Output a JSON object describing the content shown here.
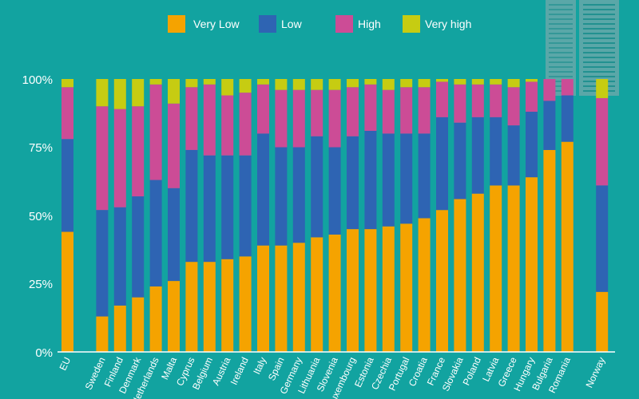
{
  "colors": {
    "background": "#12a3a0",
    "very_low": "#f5a300",
    "low": "#2e64b3",
    "high": "#cc4c96",
    "very_high": "#c6cc12",
    "axis": "#ffffff",
    "decoration": "#5aa7a8"
  },
  "legend": {
    "very_low": "Very Low",
    "low": "Low",
    "high": "High",
    "very_high": "Very high"
  },
  "chart_data": {
    "type": "bar",
    "stacked": true,
    "ylim": [
      0,
      100
    ],
    "yticks": [
      "0%",
      "25%",
      "50%",
      "75%",
      "100%"
    ],
    "grid": false,
    "legend_position": "top",
    "groups": [
      [
        "EU"
      ],
      [
        "Sweden",
        "Finland",
        "Denmark",
        "Netherlands",
        "Malta",
        "Cyprus",
        "Belgium",
        "Austria",
        "Ireland",
        "Italy",
        "Spain",
        "Germany",
        "Lithuania",
        "Slovenia",
        "Luxembourg",
        "Estonia",
        "Czechia",
        "Portugal",
        "Croatia",
        "France",
        "Slovakia",
        "Poland",
        "Latvia",
        "Greece",
        "Hungary",
        "Bulgaria",
        "Romania"
      ],
      [
        "Norway"
      ]
    ],
    "categories": [
      "EU",
      "Sweden",
      "Finland",
      "Denmark",
      "Netherlands",
      "Malta",
      "Cyprus",
      "Belgium",
      "Austria",
      "Ireland",
      "Italy",
      "Spain",
      "Germany",
      "Lithuania",
      "Slovenia",
      "Luxembourg",
      "Estonia",
      "Czechia",
      "Portugal",
      "Croatia",
      "France",
      "Slovakia",
      "Poland",
      "Latvia",
      "Greece",
      "Hungary",
      "Bulgaria",
      "Romania",
      "Norway"
    ],
    "series": [
      {
        "name": "Very Low",
        "color": "#f5a300",
        "values": [
          44,
          13,
          17,
          20,
          24,
          26,
          33,
          33,
          34,
          35,
          39,
          39,
          40,
          42,
          43,
          45,
          45,
          46,
          47,
          49,
          52,
          56,
          58,
          61,
          61,
          64,
          74,
          77,
          22
        ]
      },
      {
        "name": "Low",
        "color": "#2e64b3",
        "values": [
          34,
          39,
          36,
          37,
          39,
          34,
          41,
          39,
          38,
          37,
          41,
          36,
          35,
          37,
          32,
          34,
          36,
          34,
          33,
          31,
          34,
          28,
          28,
          25,
          22,
          24,
          18,
          17,
          39
        ]
      },
      {
        "name": "High",
        "color": "#cc4c96",
        "values": [
          19,
          38,
          36,
          33,
          35,
          31,
          23,
          26,
          22,
          23,
          18,
          21,
          21,
          17,
          21,
          18,
          17,
          16,
          17,
          17,
          13,
          14,
          12,
          12,
          14,
          11,
          8,
          6,
          32
        ]
      },
      {
        "name": "Very high",
        "color": "#c6cc12",
        "values": [
          3,
          10,
          11,
          10,
          2,
          9,
          3,
          2,
          6,
          5,
          2,
          4,
          4,
          4,
          4,
          3,
          2,
          4,
          3,
          3,
          1,
          2,
          2,
          2,
          3,
          1,
          0,
          0,
          7
        ]
      }
    ]
  }
}
